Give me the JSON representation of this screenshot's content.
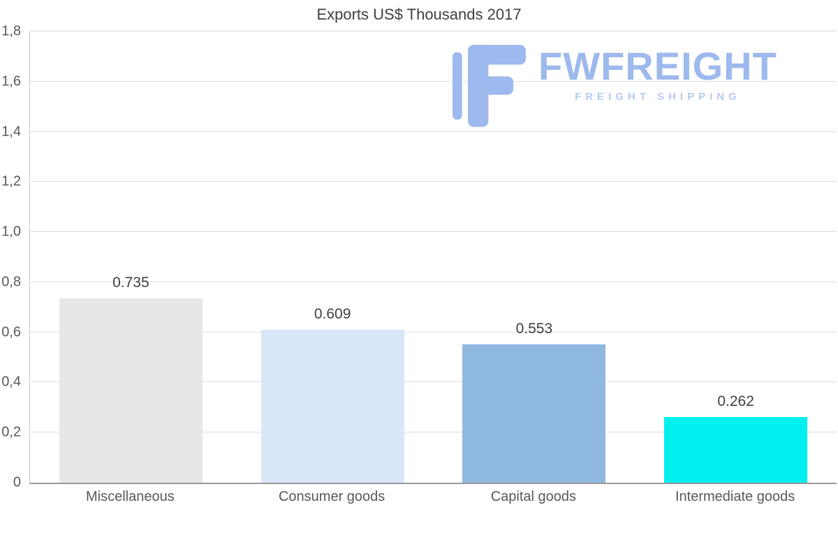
{
  "logo": {
    "name": "FWFREIGHT",
    "tagline": "FREIGHT SHIPPING",
    "color": "#9db9ed"
  },
  "chart_data": {
    "type": "bar",
    "title": "Exports US$ Thousands 2017",
    "categories": [
      "Miscellaneous",
      "Consumer goods",
      "Capital goods",
      "Intermediate goods"
    ],
    "values": [
      0.735,
      0.609,
      0.553,
      0.262
    ],
    "value_labels": [
      "0.735",
      "0.609",
      "0.553",
      "0.262"
    ],
    "bar_colors": [
      "#e7e7e7",
      "#d8e7f8",
      "#8fb8e0",
      "#00f0f0"
    ],
    "xlabel": "",
    "ylabel": "",
    "ylim": [
      0,
      1.8
    ],
    "ytick_step": 0.2,
    "ytick_labels": [
      "0",
      "0,2",
      "0,4",
      "0,6",
      "0,8",
      "1,0",
      "1,2",
      "1,4",
      "1,6",
      "1,8"
    ],
    "grid": true,
    "legend_position": "none"
  }
}
